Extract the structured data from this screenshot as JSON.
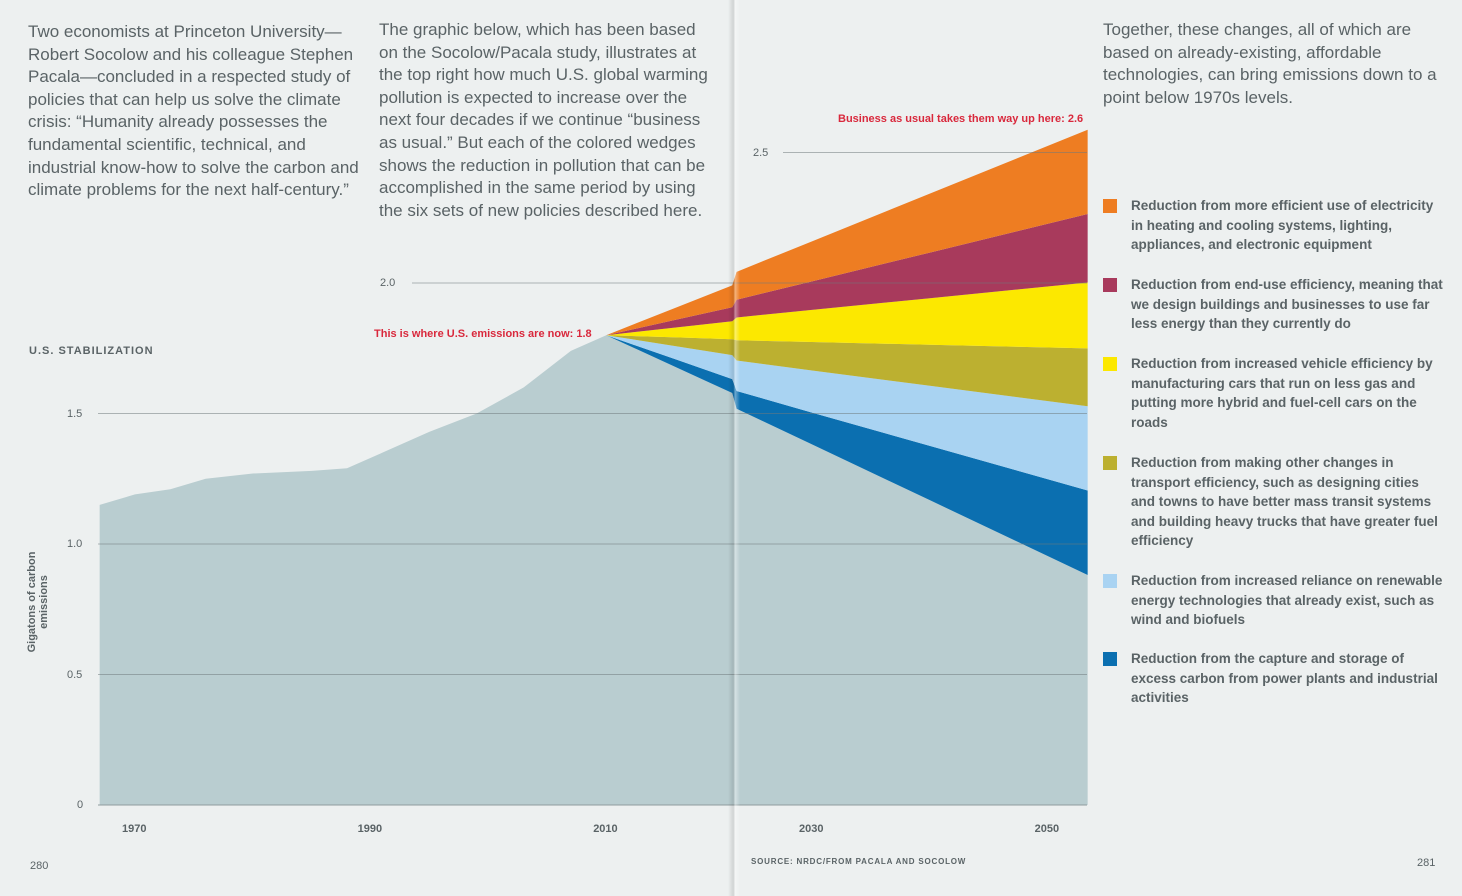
{
  "text_left_1": "Two economists at Princeton University—Robert Socolow and his colleague Stephen Pacala—concluded in a respected study of policies that can help us solve the climate crisis: “Humanity already possesses the fundamental scientific, technical, and industrial know-how to solve the carbon and climate problems for the next half-century.”",
  "text_left_2": "The graphic below, which has been based on the Socolow/Pacala study, illustrates at the top right how much U.S. global warming pollution is expected to increase over the next four decades if we continue “business as usual.” But each of the colored wedges shows the reduction in pollution that can be accomplished in the same period by using the six sets of new policies described here.",
  "text_right": "Together, these changes, all of which are based on already-existing, affordable technologies, can bring emissions down to a point below 1970s levels.",
  "page_left": "280",
  "page_right": "281",
  "source": "SOURCE: NRDC/FROM PACALA AND SOCOLOW",
  "chart_data": {
    "type": "area",
    "title": "U.S. STABILIZATION",
    "ylabel": "Gigatons of carbon emissions",
    "ylim": [
      0,
      2.6
    ],
    "yticks": [
      "0",
      "0.5",
      "1.0",
      "1.5",
      "2.0",
      "2.5"
    ],
    "ytick_values": [
      0,
      0.5,
      1.0,
      1.5,
      2.0,
      2.5
    ],
    "xticks": [
      "1970",
      "1990",
      "2010",
      "2030",
      "2050"
    ],
    "xtick_values": [
      1970,
      1990,
      2010,
      2030,
      2050
    ],
    "annotations": {
      "now": "This is where U.S. emissions are now:  1.8",
      "bau": "Business as usual takes them way up here:  2.6"
    },
    "historical": {
      "x": [
        1967,
        1970,
        1973,
        1976,
        1980,
        1985,
        1988,
        1990,
        1995,
        1999,
        2003,
        2007,
        2010
      ],
      "y": [
        1.15,
        1.19,
        1.21,
        1.25,
        1.27,
        1.28,
        1.29,
        1.33,
        1.43,
        1.5,
        1.6,
        1.74,
        1.8
      ]
    },
    "projection_x": [
      2010,
      2024,
      2053
    ],
    "stabilized": [
      1.8,
      1.51,
      0.89
    ],
    "wedges": [
      {
        "name": "Reduction from the capture and storage of excess carbon from power plants and industrial activities",
        "color": "#0b6fb0",
        "top": [
          1.8,
          1.58,
          1.21
        ]
      },
      {
        "name": "Reduction from increased reliance on renewable energy technologies that already exist, such as wind and biofuels",
        "color": "#a9d3f2",
        "top": [
          1.8,
          1.7,
          1.53
        ]
      },
      {
        "name": "Reduction from making other changes in transport efficiency, such as designing cities and towns to have better mass transit systems and building heavy trucks that have greater fuel efficiency",
        "color": "#bcb030",
        "top": [
          1.8,
          1.78,
          1.75
        ]
      },
      {
        "name": "Reduction from increased vehicle efficiency by manufacturing cars that run on less gas and putting more hybrid and fuel-cell cars on the roads",
        "color": "#fce800",
        "top": [
          1.8,
          1.87,
          2.0
        ]
      },
      {
        "name": "Reduction from end-use efficiency, meaning that we design buildings and businesses to use far less energy than they currently do",
        "color": "#a83a5c",
        "top": [
          1.8,
          1.94,
          2.26
        ]
      },
      {
        "name": "Reduction from more efficient use of electricity in heating and cooling systems, lighting, appliances, and electronic equipment",
        "color": "#ee7d22",
        "top": [
          1.8,
          2.05,
          2.58
        ]
      }
    ],
    "legend": [
      {
        "label": "Reduction from more efficient use of electricity in heating and cooling systems, lighting, appliances, and electronic equipment",
        "color": "#ee7d22"
      },
      {
        "label": "Reduction from end-use efficiency, meaning that we design buildings and businesses to use far less energy than they currently do",
        "color": "#a83a5c"
      },
      {
        "label": "Reduction from increased vehicle efficiency by manufacturing cars that run on less gas and putting more hybrid and fuel-cell cars on the roads",
        "color": "#fce800"
      },
      {
        "label": "Reduction from making other changes in transport efficiency, such as designing cities and towns to have better mass transit systems and building heavy trucks that have greater fuel efficiency",
        "color": "#bcb030"
      },
      {
        "label": "Reduction from increased reliance on renewable energy technologies that already exist, such as wind and biofuels",
        "color": "#a9d3f2"
      },
      {
        "label": "Reduction from the capture and storage of excess carbon from power plants and industrial activities",
        "color": "#0b6fb0"
      }
    ],
    "base_color": "#b9cdd0",
    "legend_placement": "right"
  }
}
